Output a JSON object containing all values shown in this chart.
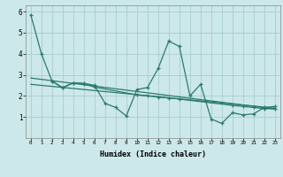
{
  "xlabel": "Humidex (Indice chaleur)",
  "bg_color": "#cce8ea",
  "line_color": "#2a7a6e",
  "grid_color": "#a0c8c8",
  "xlim": [
    -0.5,
    23.5
  ],
  "ylim": [
    0,
    6.3
  ],
  "xticks": [
    0,
    1,
    2,
    3,
    4,
    5,
    6,
    7,
    8,
    9,
    10,
    11,
    12,
    13,
    14,
    15,
    16,
    17,
    18,
    19,
    20,
    21,
    22,
    23
  ],
  "yticks": [
    1,
    2,
    3,
    4,
    5,
    6
  ],
  "line1_x": [
    0,
    1,
    2,
    3,
    4,
    5,
    6,
    7,
    8,
    9,
    10,
    11,
    12,
    13,
    14,
    15,
    16,
    17,
    18,
    19,
    20,
    21,
    22,
    23
  ],
  "line1_y": [
    5.85,
    4.0,
    2.7,
    2.4,
    2.62,
    2.6,
    2.5,
    1.65,
    1.45,
    1.05,
    2.3,
    2.4,
    3.3,
    4.6,
    4.35,
    2.0,
    2.55,
    0.9,
    0.7,
    1.2,
    1.1,
    1.15,
    1.45,
    1.5
  ],
  "line2_x": [
    2,
    3,
    4,
    5,
    6,
    10,
    11,
    12,
    13,
    14,
    19,
    20,
    21,
    22,
    23
  ],
  "line2_y": [
    2.7,
    2.38,
    2.62,
    2.58,
    2.42,
    2.05,
    2.0,
    1.95,
    1.9,
    1.85,
    1.55,
    1.5,
    1.45,
    1.4,
    1.38
  ],
  "line3_x": [
    0,
    23
  ],
  "line3_y": [
    2.85,
    1.38
  ],
  "line4_x": [
    0,
    23
  ],
  "line4_y": [
    2.55,
    1.42
  ]
}
